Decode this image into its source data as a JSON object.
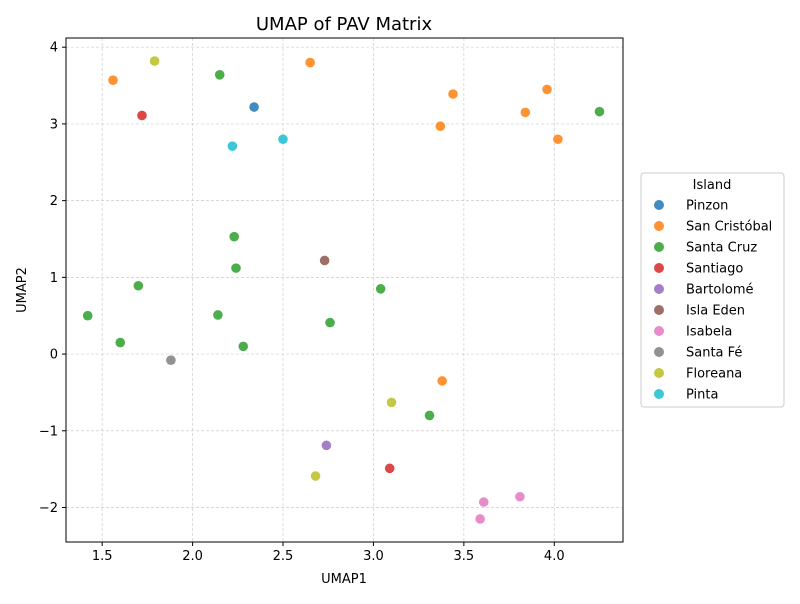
{
  "chart_data": {
    "type": "scatter",
    "title": "UMAP of PAV Matrix",
    "xlabel": "UMAP1",
    "ylabel": "UMAP2",
    "xlim": [
      1.3,
      4.38
    ],
    "ylim": [
      -2.45,
      4.12
    ],
    "xticks": [
      1.5,
      2.0,
      2.5,
      3.0,
      3.5,
      4.0
    ],
    "xtick_labels": [
      "1.5",
      "2.0",
      "2.5",
      "3.0",
      "3.5",
      "4.0"
    ],
    "yticks": [
      -2,
      -1,
      0,
      1,
      2,
      3,
      4
    ],
    "ytick_labels": [
      "−2",
      "−1",
      "0",
      "1",
      "2",
      "3",
      "4"
    ],
    "grid": true,
    "legend_position": "center-right, outside plot",
    "legend_title": "Island",
    "series": [
      {
        "name": "Pinzon",
        "color": "#1f77b4",
        "points": [
          [
            2.34,
            3.22
          ]
        ]
      },
      {
        "name": "San Cristóbal",
        "color": "#ff7f0e",
        "points": [
          [
            1.56,
            3.57
          ],
          [
            2.65,
            3.8
          ],
          [
            3.44,
            3.39
          ],
          [
            3.96,
            3.45
          ],
          [
            3.37,
            2.97
          ],
          [
            3.84,
            3.15
          ],
          [
            4.02,
            2.8
          ],
          [
            3.38,
            -0.35
          ]
        ]
      },
      {
        "name": "Santa Cruz",
        "color": "#2ca02c",
        "points": [
          [
            2.15,
            3.64
          ],
          [
            4.25,
            3.16
          ],
          [
            2.23,
            1.53
          ],
          [
            2.24,
            1.12
          ],
          [
            1.7,
            0.89
          ],
          [
            3.04,
            0.85
          ],
          [
            1.42,
            0.5
          ],
          [
            2.14,
            0.51
          ],
          [
            2.76,
            0.41
          ],
          [
            1.6,
            0.15
          ],
          [
            2.28,
            0.1
          ],
          [
            3.31,
            -0.8
          ]
        ]
      },
      {
        "name": "Santiago",
        "color": "#d62728",
        "points": [
          [
            1.72,
            3.11
          ],
          [
            3.09,
            -1.49
          ]
        ]
      },
      {
        "name": "Bartolomé",
        "color": "#9467bd",
        "points": [
          [
            2.74,
            -1.19
          ]
        ]
      },
      {
        "name": "Isla Eden",
        "color": "#8c564b",
        "points": [
          [
            2.73,
            1.22
          ]
        ]
      },
      {
        "name": "Isabela",
        "color": "#e377c2",
        "points": [
          [
            3.61,
            -1.93
          ],
          [
            3.81,
            -1.86
          ],
          [
            3.59,
            -2.15
          ]
        ]
      },
      {
        "name": "Santa Fé",
        "color": "#7f7f7f",
        "points": [
          [
            1.88,
            -0.08
          ]
        ]
      },
      {
        "name": "Floreana",
        "color": "#bcbd22",
        "points": [
          [
            1.79,
            3.82
          ],
          [
            3.1,
            -0.63
          ],
          [
            2.68,
            -1.59
          ]
        ]
      },
      {
        "name": "Pinta",
        "color": "#17becf",
        "points": [
          [
            2.22,
            2.71
          ],
          [
            2.5,
            2.8
          ]
        ]
      }
    ]
  }
}
